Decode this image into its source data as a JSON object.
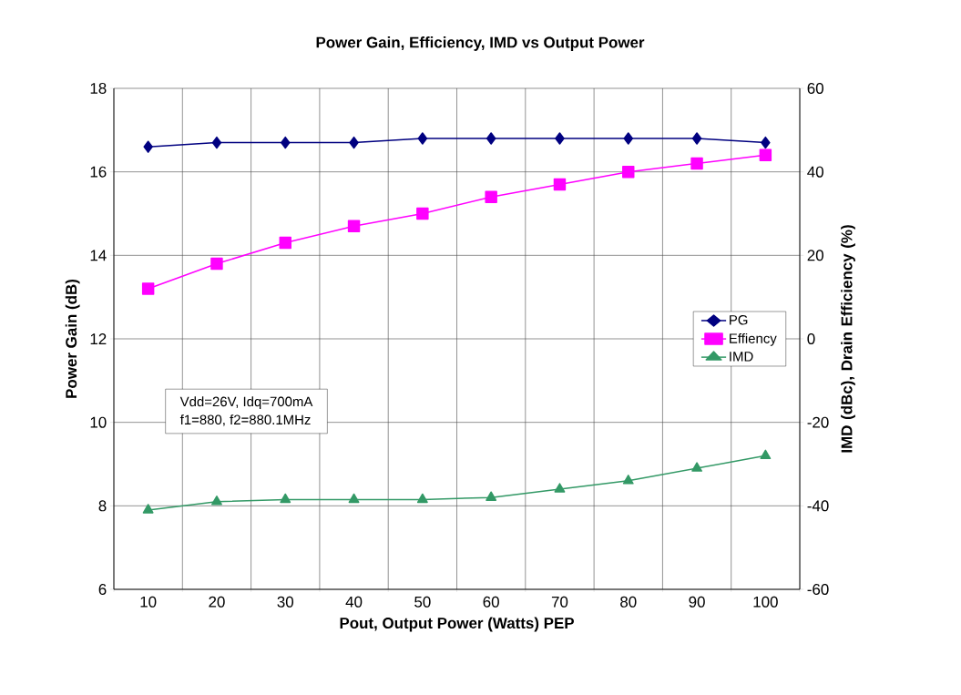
{
  "chart_data": {
    "type": "line",
    "title": "Power Gain, Efficiency, IMD vs Output Power",
    "xlabel": "Pout, Output Power (Watts) PEP",
    "ylabel": "Power Gain (dB)",
    "y2label": "IMD (dBc), Drain Efficiency (%)",
    "categories": [
      "10",
      "20",
      "30",
      "40",
      "50",
      "60",
      "70",
      "80",
      "90",
      "100"
    ],
    "series": [
      {
        "name": "PG",
        "color": "#000080",
        "marker": "diamond",
        "values": [
          16.6,
          16.7,
          16.7,
          16.7,
          16.8,
          16.8,
          16.8,
          16.8,
          16.8,
          16.7
        ]
      },
      {
        "name": "Effiency",
        "color": "#ff00ff",
        "marker": "square",
        "axis": "y2",
        "values": [
          12,
          18,
          23,
          27,
          30,
          34,
          37,
          40,
          42,
          44
        ]
      },
      {
        "name": "IMD",
        "color": "#339966",
        "marker": "triangle",
        "axis": "y2",
        "values": [
          -41,
          -39,
          -38.5,
          -38.5,
          -38.5,
          -38,
          -36,
          -34,
          -31,
          -28
        ]
      }
    ],
    "ylim": [
      6,
      18
    ],
    "yticks": [
      6,
      8,
      10,
      12,
      14,
      16,
      18
    ],
    "y2lim": [
      -60,
      60
    ],
    "y2ticks": [
      -60,
      -40,
      -20,
      0,
      20,
      40,
      60
    ],
    "grid": true,
    "legend": "right",
    "annotations": [
      "Vdd=26V, Idq=700mA",
      "f1=880, f2=880.1MHz"
    ]
  }
}
